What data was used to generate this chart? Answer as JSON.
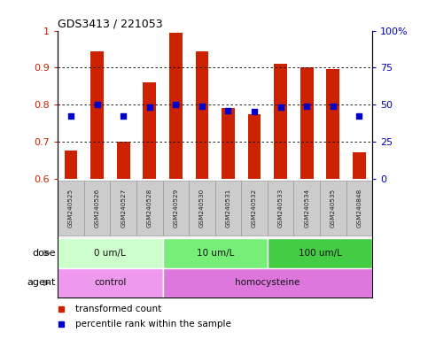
{
  "title": "GDS3413 / 221053",
  "samples": [
    "GSM240525",
    "GSM240526",
    "GSM240527",
    "GSM240528",
    "GSM240529",
    "GSM240530",
    "GSM240531",
    "GSM240532",
    "GSM240533",
    "GSM240534",
    "GSM240535",
    "GSM240848"
  ],
  "bar_values": [
    0.675,
    0.945,
    0.7,
    0.86,
    0.995,
    0.945,
    0.79,
    0.775,
    0.91,
    0.9,
    0.895,
    0.67
  ],
  "dot_values": [
    0.77,
    0.8,
    0.77,
    0.793,
    0.8,
    0.795,
    0.783,
    0.78,
    0.793,
    0.795,
    0.795,
    0.768
  ],
  "bar_color": "#cc2200",
  "dot_color": "#0000cc",
  "ylim_left": [
    0.6,
    1.0
  ],
  "ylim_right": [
    0,
    100
  ],
  "yticks_left": [
    0.6,
    0.7,
    0.8,
    0.9,
    1.0
  ],
  "ytick_labels_left": [
    "0.6",
    "0.7",
    "0.8",
    "0.9",
    "1"
  ],
  "yticks_right": [
    0,
    25,
    50,
    75,
    100
  ],
  "ytick_labels_right": [
    "0",
    "25",
    "50",
    "75",
    "100%"
  ],
  "dose_groups": [
    {
      "label": "0 um/L",
      "start": 0,
      "end": 4,
      "color": "#ccffcc"
    },
    {
      "label": "10 um/L",
      "start": 4,
      "end": 8,
      "color": "#77ee77"
    },
    {
      "label": "100 um/L",
      "start": 8,
      "end": 12,
      "color": "#44cc44"
    }
  ],
  "agent_groups": [
    {
      "label": "control",
      "start": 0,
      "end": 4,
      "color": "#ee99ee"
    },
    {
      "label": "homocysteine",
      "start": 4,
      "end": 12,
      "color": "#dd77dd"
    }
  ],
  "legend_items": [
    {
      "label": "transformed count",
      "color": "#cc2200"
    },
    {
      "label": "percentile rank within the sample",
      "color": "#0000cc"
    }
  ],
  "dose_label": "dose",
  "agent_label": "agent",
  "bar_width": 0.5,
  "tick_color_left": "#cc2200",
  "tick_color_right": "#0000bb",
  "sample_box_color": "#cccccc",
  "sample_box_edge": "#999999"
}
